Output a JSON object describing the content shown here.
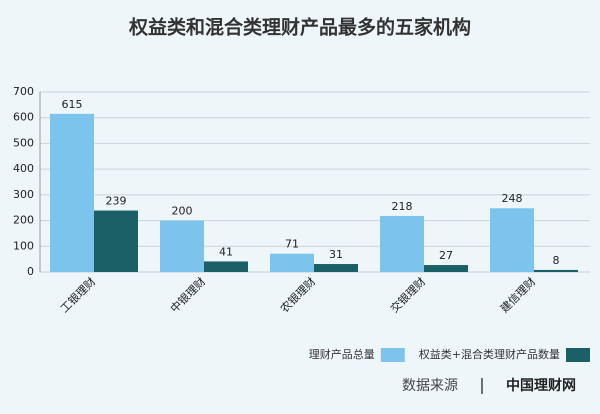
{
  "chart_data": {
    "type": "bar",
    "title": "权益类和混合类理财产品最多的五家机构",
    "categories": [
      "工银理财",
      "中银理财",
      "农银理财",
      "交银理财",
      "建信理财"
    ],
    "series": [
      {
        "name": "理财产品总量",
        "color": "#7cc4ec",
        "values": [
          615,
          200,
          71,
          218,
          248
        ]
      },
      {
        "name": "权益类+混合类理财产品数量",
        "color": "#1b6066",
        "values": [
          239,
          41,
          31,
          27,
          8
        ]
      }
    ],
    "ylim": [
      0,
      700
    ],
    "yticks": [
      0,
      100,
      200,
      300,
      400,
      500,
      600,
      700
    ],
    "grid": true,
    "legend": "bottom-right",
    "source_label": "数据来源",
    "source": "中国理财网"
  }
}
